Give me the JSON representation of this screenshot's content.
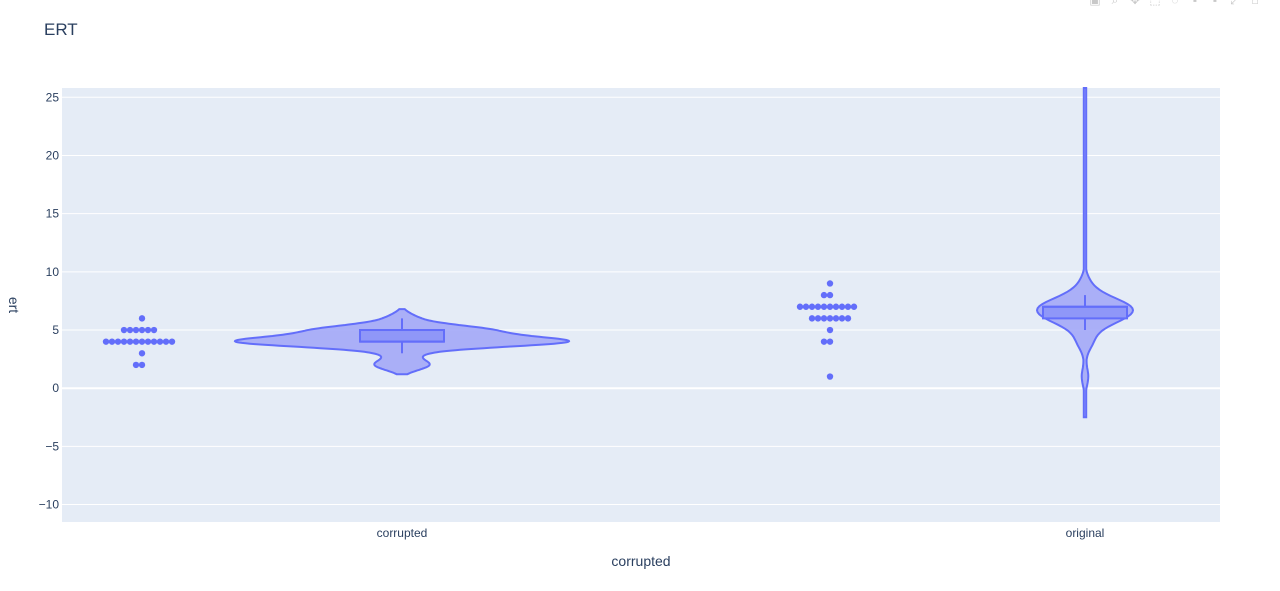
{
  "chart_data": {
    "type": "violin",
    "title": "ERT",
    "xlabel": "corrupted",
    "ylabel": "ert",
    "categories": [
      "corrupted",
      "original"
    ],
    "ylim": [
      -11.5,
      25.8
    ],
    "yticks": [
      -10,
      -5,
      0,
      5,
      10,
      15,
      20,
      25
    ],
    "ytick_labels": [
      "−10",
      "−5",
      "0",
      "5",
      "10",
      "15",
      "20",
      "25"
    ],
    "grid": true,
    "colors": {
      "fill": "#a3a9f7",
      "line": "#636efa",
      "points": "#636efa",
      "plot_bg": "#e5ecf6",
      "grid": "#ffffff"
    },
    "groups": [
      {
        "category": "corrupted",
        "points": [
          4,
          4,
          4,
          4,
          4,
          4,
          4,
          4,
          4,
          4,
          4,
          4,
          5,
          5,
          5,
          5,
          5,
          5,
          6,
          3,
          2,
          2
        ],
        "box": {
          "q1": 4,
          "median": 4,
          "q3": 5,
          "whisker_low": 3,
          "whisker_high": 6
        },
        "violin_range": [
          1.2,
          6.8
        ]
      },
      {
        "category": "original",
        "points": [
          7,
          7,
          7,
          7,
          7,
          7,
          7,
          7,
          7,
          7,
          6,
          6,
          6,
          6,
          6,
          6,
          6,
          8,
          8,
          9,
          5,
          4,
          4,
          1
        ],
        "box": {
          "q1": 6,
          "median": 7,
          "q3": 7,
          "whisker_low": 5,
          "whisker_high": 8
        },
        "violin_range": [
          -2.5,
          25.8
        ]
      }
    ]
  },
  "modebar": {
    "icons": [
      "camera-icon",
      "zoom-icon",
      "pan-icon",
      "box-select-icon",
      "lasso-icon",
      "zoom-in-icon",
      "zoom-out-icon",
      "autoscale-icon",
      "reset-axes-icon"
    ]
  }
}
